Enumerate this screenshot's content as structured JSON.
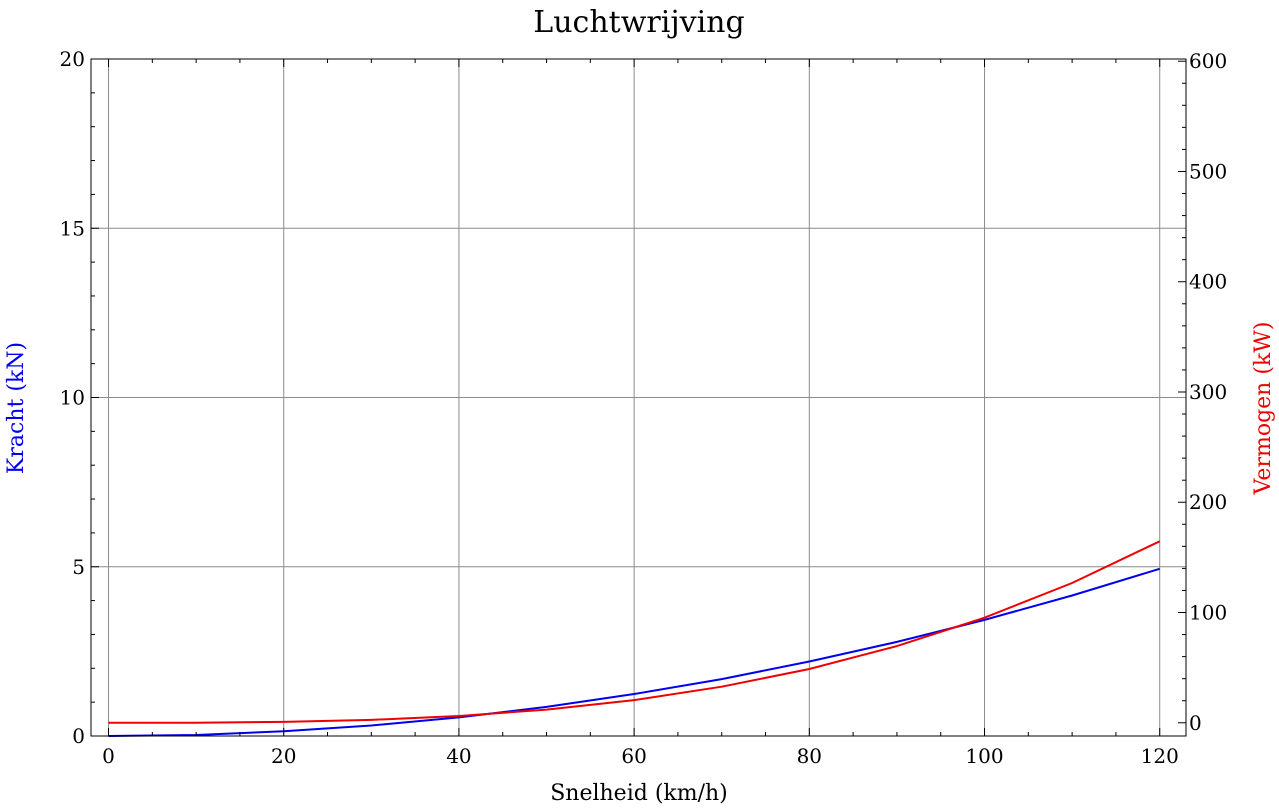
{
  "chart_data": {
    "type": "line",
    "title": "Luchtwrijving",
    "xlabel": "Snelheid (km/h)",
    "ylabel_left": "Kracht (kN)",
    "ylabel_right": "Vermogen (kW)",
    "xlim": [
      -2,
      123
    ],
    "ylim_left": [
      0,
      20
    ],
    "ylim_right": [
      -12,
      602
    ],
    "x_ticks": [
      0,
      20,
      40,
      60,
      80,
      100,
      120
    ],
    "y_left_ticks": [
      0,
      5,
      10,
      15,
      20
    ],
    "y_right_ticks": [
      0,
      100,
      200,
      300,
      400,
      500,
      600
    ],
    "grid": true,
    "axis_colors": {
      "left": "#0000ee",
      "right": "#ee0000"
    },
    "series": [
      {
        "axis": "left",
        "color": "#0000ee",
        "x": [
          0,
          10,
          20,
          30,
          40,
          50,
          60,
          70,
          80,
          90,
          100,
          110,
          120
        ],
        "y": [
          0.0,
          0.03,
          0.14,
          0.31,
          0.55,
          0.86,
          1.24,
          1.68,
          2.2,
          2.78,
          3.43,
          4.15,
          4.94
        ]
      },
      {
        "axis": "right",
        "color": "#ee0000",
        "x": [
          0,
          10,
          20,
          30,
          40,
          50,
          60,
          70,
          80,
          90,
          100,
          110,
          120
        ],
        "y": [
          0.0,
          0.1,
          0.8,
          2.6,
          6.1,
          11.9,
          20.6,
          32.7,
          48.8,
          69.5,
          95.3,
          126.8,
          164.6
        ]
      }
    ]
  }
}
